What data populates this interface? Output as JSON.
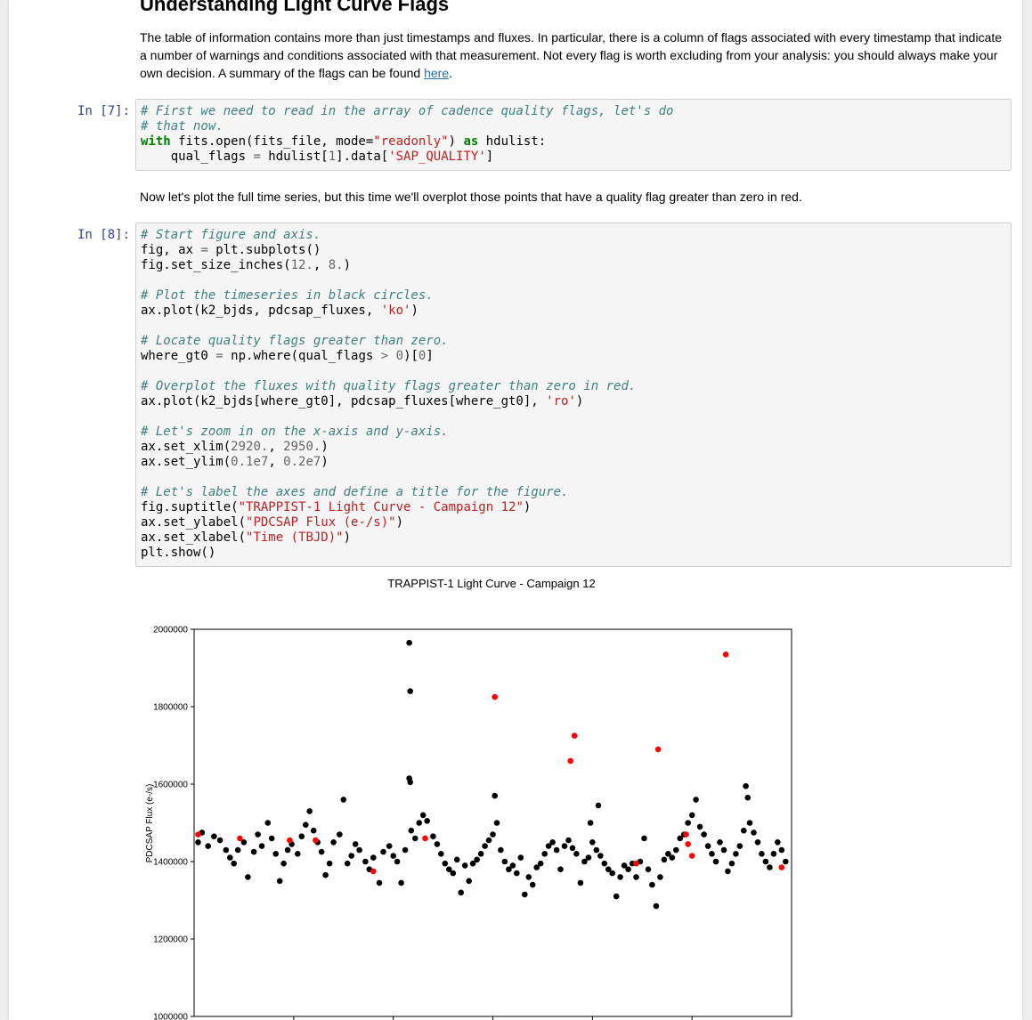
{
  "heading": "Understanding Light Curve Flags",
  "intro": {
    "text": "The table of information contains more than just timestamps and fluxes. In particular, there is a column of flags associated with every timestamp that indicate a number of warnings and conditions associated with that measurement. Not every flag is worth excluding from your analysis: you should always make your own decision. A summary of the flags can be found ",
    "link_text": "here",
    "suffix": "."
  },
  "cell7": {
    "prompt": "In [7]:",
    "lines": [
      [
        [
          "c",
          "# First we need to read in the array of cadence quality flags, let's do"
        ]
      ],
      [
        [
          "c",
          "# that now."
        ]
      ],
      [
        [
          "k",
          "with"
        ],
        [
          "t",
          " fits.open(fits_file, mode="
        ],
        [
          "s",
          "\"readonly\""
        ],
        [
          "t",
          ") "
        ],
        [
          "k",
          "as"
        ],
        [
          "t",
          " hdulist:"
        ]
      ],
      [
        [
          "t",
          "    qual_flags "
        ],
        [
          "o",
          "="
        ],
        [
          "t",
          " hdulist["
        ],
        [
          "n",
          "1"
        ],
        [
          "t",
          "].data["
        ],
        [
          "s",
          "'SAP_QUALITY'"
        ],
        [
          "t",
          "]"
        ]
      ]
    ]
  },
  "between_text": "Now let's plot the full time series, but this time we'll overplot those points that have a quality flag greater than zero in red.",
  "cell8": {
    "prompt": "In [8]:",
    "lines": [
      [
        [
          "c",
          "# Start figure and axis."
        ]
      ],
      [
        [
          "t",
          "fig, ax "
        ],
        [
          "o",
          "="
        ],
        [
          "t",
          " plt.subplots()"
        ]
      ],
      [
        [
          "t",
          "fig.set_size_inches("
        ],
        [
          "n",
          "12."
        ],
        [
          "t",
          ", "
        ],
        [
          "n",
          "8."
        ],
        [
          "t",
          ")"
        ]
      ],
      [],
      [
        [
          "c",
          "# Plot the timeseries in black circles."
        ]
      ],
      [
        [
          "t",
          "ax.plot(k2_bjds, pdcsap_fluxes, "
        ],
        [
          "s",
          "'ko'"
        ],
        [
          "t",
          ")"
        ]
      ],
      [],
      [
        [
          "c",
          "# Locate quality flags greater than zero."
        ]
      ],
      [
        [
          "t",
          "where_gt0 "
        ],
        [
          "o",
          "="
        ],
        [
          "t",
          " np.where(qual_flags "
        ],
        [
          "o",
          ">"
        ],
        [
          "t",
          " "
        ],
        [
          "n",
          "0"
        ],
        [
          "t",
          ")["
        ],
        [
          "n",
          "0"
        ],
        [
          "t",
          "]"
        ]
      ],
      [],
      [
        [
          "c",
          "# Overplot the fluxes with quality flags greater than zero in red."
        ]
      ],
      [
        [
          "t",
          "ax.plot(k2_bjds[where_gt0], pdcsap_fluxes[where_gt0], "
        ],
        [
          "s",
          "'ro'"
        ],
        [
          "t",
          ")"
        ]
      ],
      [],
      [
        [
          "c",
          "# Let's zoom in on the x-axis and y-axis."
        ]
      ],
      [
        [
          "t",
          "ax.set_xlim("
        ],
        [
          "n",
          "2920."
        ],
        [
          "t",
          ", "
        ],
        [
          "n",
          "2950."
        ],
        [
          "t",
          ")"
        ]
      ],
      [
        [
          "t",
          "ax.set_ylim("
        ],
        [
          "n",
          "0.1e7"
        ],
        [
          "t",
          ", "
        ],
        [
          "n",
          "0.2e7"
        ],
        [
          "t",
          ")"
        ]
      ],
      [],
      [
        [
          "c",
          "# Let's label the axes and define a title for the figure."
        ]
      ],
      [
        [
          "t",
          "fig.suptitle("
        ],
        [
          "s",
          "\"TRAPPIST-1 Light Curve - Campaign 12\""
        ],
        [
          "t",
          ")"
        ]
      ],
      [
        [
          "t",
          "ax.set_ylabel("
        ],
        [
          "s",
          "\"PDCSAP Flux (e-/s)\""
        ],
        [
          "t",
          ")"
        ]
      ],
      [
        [
          "t",
          "ax.set_xlabel("
        ],
        [
          "s",
          "\"Time (TBJD)\""
        ],
        [
          "t",
          ")"
        ]
      ],
      [
        [
          "t",
          "plt.show()"
        ]
      ]
    ]
  },
  "chart_data": {
    "type": "scatter",
    "title": "TRAPPIST-1 Light Curve - Campaign 12",
    "ylabel": "PDCSAP Flux (e-/s)",
    "xlabel": "Time (TBJD)",
    "xlim": [
      2920,
      2950
    ],
    "ylim": [
      1000000,
      2000000
    ],
    "yticks": [
      1000000,
      1200000,
      1400000,
      1600000,
      1800000,
      2000000
    ],
    "ytick_labels": [
      "1000000",
      "1200000",
      "1400000",
      "1600000",
      "1800000",
      "2000000"
    ],
    "xticks": [
      2925,
      2930,
      2935,
      2940,
      2945
    ],
    "grid": false,
    "legend": false,
    "series": [
      {
        "color": "#000000",
        "points": [
          [
            2920.2,
            1450000
          ],
          [
            2920.4,
            1475000
          ],
          [
            2920.7,
            1440000
          ],
          [
            2921.0,
            1465000
          ],
          [
            2921.3,
            1455000
          ],
          [
            2921.6,
            1430000
          ],
          [
            2921.8,
            1410000
          ],
          [
            2922.0,
            1395000
          ],
          [
            2922.2,
            1430000
          ],
          [
            2922.5,
            1450000
          ],
          [
            2922.7,
            1360000
          ],
          [
            2923.0,
            1425000
          ],
          [
            2923.2,
            1470000
          ],
          [
            2923.4,
            1440000
          ],
          [
            2923.7,
            1500000
          ],
          [
            2923.9,
            1460000
          ],
          [
            2924.1,
            1420000
          ],
          [
            2924.3,
            1350000
          ],
          [
            2924.5,
            1395000
          ],
          [
            2924.7,
            1430000
          ],
          [
            2924.9,
            1445000
          ],
          [
            2925.2,
            1420000
          ],
          [
            2925.4,
            1465000
          ],
          [
            2925.6,
            1495000
          ],
          [
            2925.8,
            1530000
          ],
          [
            2926.0,
            1480000
          ],
          [
            2926.2,
            1450000
          ],
          [
            2926.4,
            1425000
          ],
          [
            2926.6,
            1365000
          ],
          [
            2926.8,
            1395000
          ],
          [
            2927.0,
            1450000
          ],
          [
            2927.3,
            1470000
          ],
          [
            2927.5,
            1560000
          ],
          [
            2927.7,
            1395000
          ],
          [
            2927.9,
            1415000
          ],
          [
            2928.1,
            1445000
          ],
          [
            2928.3,
            1430000
          ],
          [
            2928.6,
            1400000
          ],
          [
            2928.8,
            1380000
          ],
          [
            2929.0,
            1410000
          ],
          [
            2929.3,
            1345000
          ],
          [
            2929.5,
            1425000
          ],
          [
            2929.8,
            1440000
          ],
          [
            2930.0,
            1415000
          ],
          [
            2930.2,
            1400000
          ],
          [
            2930.4,
            1345000
          ],
          [
            2930.6,
            1430000
          ],
          [
            2930.8,
            1965000
          ],
          [
            2930.85,
            1840000
          ],
          [
            2930.8,
            1615000
          ],
          [
            2930.85,
            1605000
          ],
          [
            2930.9,
            1480000
          ],
          [
            2931.1,
            1460000
          ],
          [
            2931.3,
            1500000
          ],
          [
            2931.5,
            1520000
          ],
          [
            2931.7,
            1505000
          ],
          [
            2932.0,
            1465000
          ],
          [
            2932.2,
            1445000
          ],
          [
            2932.4,
            1420000
          ],
          [
            2932.6,
            1395000
          ],
          [
            2932.8,
            1380000
          ],
          [
            2933.0,
            1370000
          ],
          [
            2933.2,
            1405000
          ],
          [
            2933.4,
            1320000
          ],
          [
            2933.6,
            1390000
          ],
          [
            2933.8,
            1350000
          ],
          [
            2934.0,
            1395000
          ],
          [
            2934.2,
            1405000
          ],
          [
            2934.4,
            1420000
          ],
          [
            2934.6,
            1440000
          ],
          [
            2934.8,
            1455000
          ],
          [
            2935.0,
            1470000
          ],
          [
            2935.1,
            1570000
          ],
          [
            2935.2,
            1500000
          ],
          [
            2935.4,
            1430000
          ],
          [
            2935.6,
            1400000
          ],
          [
            2935.8,
            1380000
          ],
          [
            2936.0,
            1390000
          ],
          [
            2936.2,
            1370000
          ],
          [
            2936.4,
            1410000
          ],
          [
            2936.6,
            1315000
          ],
          [
            2936.8,
            1360000
          ],
          [
            2937.0,
            1340000
          ],
          [
            2937.2,
            1385000
          ],
          [
            2937.4,
            1395000
          ],
          [
            2937.6,
            1420000
          ],
          [
            2937.8,
            1440000
          ],
          [
            2938.0,
            1450000
          ],
          [
            2938.2,
            1430000
          ],
          [
            2938.4,
            1380000
          ],
          [
            2938.6,
            1440000
          ],
          [
            2938.8,
            1455000
          ],
          [
            2939.0,
            1435000
          ],
          [
            2939.2,
            1420000
          ],
          [
            2939.4,
            1345000
          ],
          [
            2939.6,
            1400000
          ],
          [
            2939.8,
            1410000
          ],
          [
            2939.9,
            1500000
          ],
          [
            2940.0,
            1450000
          ],
          [
            2940.2,
            1430000
          ],
          [
            2940.3,
            1545000
          ],
          [
            2940.4,
            1415000
          ],
          [
            2940.6,
            1395000
          ],
          [
            2940.8,
            1380000
          ],
          [
            2941.0,
            1370000
          ],
          [
            2941.2,
            1310000
          ],
          [
            2941.4,
            1360000
          ],
          [
            2941.6,
            1390000
          ],
          [
            2941.8,
            1380000
          ],
          [
            2942.0,
            1395000
          ],
          [
            2942.2,
            1360000
          ],
          [
            2942.4,
            1400000
          ],
          [
            2942.6,
            1460000
          ],
          [
            2942.8,
            1380000
          ],
          [
            2943.0,
            1340000
          ],
          [
            2943.2,
            1285000
          ],
          [
            2943.4,
            1360000
          ],
          [
            2943.6,
            1405000
          ],
          [
            2943.8,
            1420000
          ],
          [
            2944.0,
            1410000
          ],
          [
            2944.2,
            1430000
          ],
          [
            2944.4,
            1460000
          ],
          [
            2944.6,
            1470000
          ],
          [
            2944.8,
            1500000
          ],
          [
            2945.0,
            1520000
          ],
          [
            2945.2,
            1560000
          ],
          [
            2945.4,
            1490000
          ],
          [
            2945.6,
            1470000
          ],
          [
            2945.8,
            1440000
          ],
          [
            2946.0,
            1420000
          ],
          [
            2946.2,
            1400000
          ],
          [
            2946.4,
            1450000
          ],
          [
            2946.6,
            1430000
          ],
          [
            2946.8,
            1375000
          ],
          [
            2947.0,
            1395000
          ],
          [
            2947.2,
            1420000
          ],
          [
            2947.4,
            1440000
          ],
          [
            2947.6,
            1480000
          ],
          [
            2947.7,
            1595000
          ],
          [
            2947.8,
            1565000
          ],
          [
            2947.9,
            1500000
          ],
          [
            2948.1,
            1475000
          ],
          [
            2948.3,
            1450000
          ],
          [
            2948.5,
            1420000
          ],
          [
            2948.7,
            1400000
          ],
          [
            2948.9,
            1385000
          ],
          [
            2949.1,
            1420000
          ],
          [
            2949.3,
            1450000
          ],
          [
            2949.5,
            1430000
          ],
          [
            2949.7,
            1400000
          ]
        ]
      },
      {
        "color": "#ff0000",
        "points": [
          [
            2920.2,
            1470000
          ],
          [
            2922.3,
            1460000
          ],
          [
            2924.8,
            1455000
          ],
          [
            2926.1,
            1455000
          ],
          [
            2929.0,
            1375000
          ],
          [
            2931.6,
            1460000
          ],
          [
            2935.1,
            1825000
          ],
          [
            2938.9,
            1660000
          ],
          [
            2939.1,
            1725000
          ],
          [
            2942.2,
            1395000
          ],
          [
            2943.3,
            1690000
          ],
          [
            2944.7,
            1470000
          ],
          [
            2944.8,
            1445000
          ],
          [
            2945.0,
            1415000
          ],
          [
            2946.7,
            1935000
          ],
          [
            2949.5,
            1385000
          ],
          [
            2950.4,
            1800000
          ],
          [
            2950.6,
            1465000
          ]
        ]
      }
    ]
  }
}
